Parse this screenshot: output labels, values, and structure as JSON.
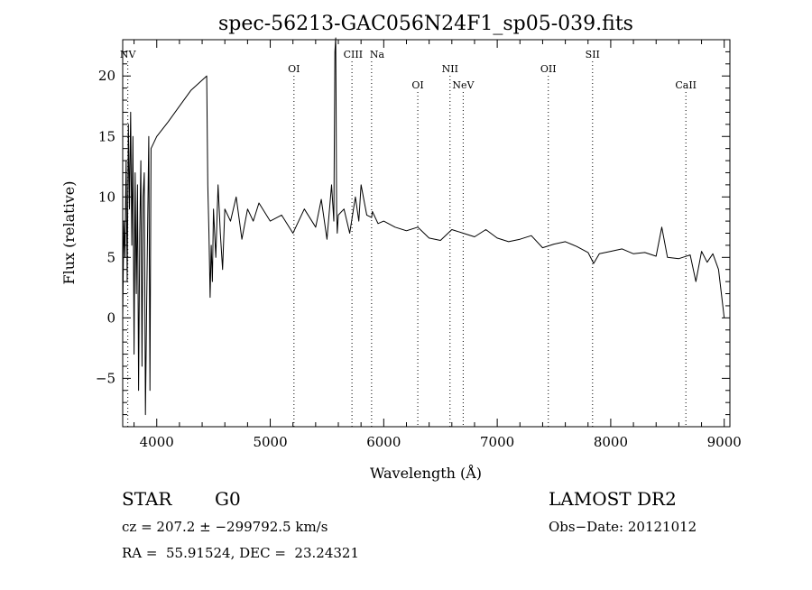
{
  "chart_data": {
    "type": "line",
    "title": "spec-56213-GAC056N24F1_sp05-039.fits",
    "xlabel": "Wavelength (Å)",
    "ylabel": "Flux (relative)",
    "xlim": [
      3700,
      9050
    ],
    "ylim": [
      -9,
      23
    ],
    "x_ticks": [
      {
        "value": 4000,
        "label": "4000"
      },
      {
        "value": 5000,
        "label": "5000"
      },
      {
        "value": 6000,
        "label": "6000"
      },
      {
        "value": 7000,
        "label": "7000"
      },
      {
        "value": 8000,
        "label": "8000"
      },
      {
        "value": 9000,
        "label": "9000"
      }
    ],
    "y_ticks": [
      {
        "value": -5,
        "label": "−5"
      },
      {
        "value": 0,
        "label": "0"
      },
      {
        "value": 5,
        "label": "5"
      },
      {
        "value": 10,
        "label": "10"
      },
      {
        "value": 15,
        "label": "15"
      },
      {
        "value": 20,
        "label": "20"
      }
    ],
    "grid": false,
    "line_color": "#000000",
    "series": [
      {
        "x": [
          3700,
          3710,
          3720,
          3730,
          3740,
          3750,
          3760,
          3770,
          3780,
          3790,
          3800,
          3810,
          3820,
          3830,
          3840,
          3850,
          3860,
          3870,
          3880,
          3890,
          3900,
          3910,
          3920,
          3930,
          3940,
          3950,
          4000,
          4100,
          4200,
          4300,
          4440,
          4450,
          4460,
          4470,
          4480,
          4490,
          4500,
          4520,
          4540,
          4560,
          4580,
          4600,
          4650,
          4700,
          4750,
          4800,
          4850,
          4900,
          5000,
          5100,
          5200,
          5300,
          5400,
          5450,
          5500,
          5540,
          5560,
          5570,
          5577,
          5580,
          5585,
          5590,
          5600,
          5650,
          5700,
          5750,
          5780,
          5800,
          5850,
          5893,
          5900,
          5950,
          6000,
          6100,
          6200,
          6300,
          6400,
          6500,
          6600,
          6700,
          6800,
          6900,
          7000,
          7100,
          7200,
          7300,
          7400,
          7500,
          7600,
          7700,
          7800,
          7850,
          7900,
          8000,
          8100,
          8200,
          8300,
          8400,
          8450,
          8500,
          8600,
          8700,
          8750,
          8800,
          8850,
          8900,
          8950,
          9000
        ],
        "y": [
          0,
          8,
          5,
          13,
          3,
          16,
          9,
          17,
          6,
          15,
          -3,
          12,
          2,
          11,
          -6,
          7,
          13,
          -4,
          10,
          12,
          -8,
          0,
          8,
          15,
          -6,
          14,
          15,
          16.2,
          17.5,
          18.8,
          20,
          11,
          7,
          1.7,
          6,
          3,
          9,
          5,
          11,
          7,
          4,
          9,
          8,
          10,
          6.5,
          9,
          8,
          9.5,
          8,
          8.5,
          7,
          9,
          7.5,
          9.8,
          6.5,
          11,
          8,
          22,
          24,
          18,
          9,
          7,
          8.5,
          9,
          7,
          10,
          8,
          11,
          8.5,
          8.3,
          8.8,
          7.8,
          8,
          7.5,
          7.2,
          7.5,
          6.6,
          6.4,
          7.3,
          7,
          6.7,
          7.3,
          6.6,
          6.3,
          6.5,
          6.8,
          5.8,
          6.1,
          6.3,
          5.9,
          5.4,
          4.5,
          5.3,
          5.5,
          5.7,
          5.3,
          5.4,
          5.1,
          7.5,
          5,
          4.9,
          5.2,
          3,
          5.5,
          4.6,
          5.3,
          4,
          0
        ]
      }
    ],
    "line_markers": [
      {
        "label": "NV",
        "wavelength": 3745,
        "row": "top"
      },
      {
        "label": "OI",
        "wavelength": 5209,
        "row": "upper"
      },
      {
        "label": "CIII",
        "wavelength": 5720,
        "row": "top"
      },
      {
        "label": "Na",
        "wavelength": 5893,
        "row": "top"
      },
      {
        "label": "OI",
        "wavelength": 6300,
        "row": "lower"
      },
      {
        "label": "NII",
        "wavelength": 6584,
        "row": "upper"
      },
      {
        "label": "NeV",
        "wavelength": 6700,
        "row": "lower"
      },
      {
        "label": "OII",
        "wavelength": 7450,
        "row": "upper"
      },
      {
        "label": "SII",
        "wavelength": 7840,
        "row": "top"
      },
      {
        "label": "CaII",
        "wavelength": 8662,
        "row": "lower"
      }
    ]
  },
  "footer": {
    "class_label": "STAR",
    "subclass": "G0",
    "survey": "LAMOST DR2",
    "cz_line": "cz = 207.2 ± −299792.5 km/s",
    "obs_date": "Obs−Date: 20121012",
    "coords": "RA =  55.91524, DEC =  23.24321"
  }
}
